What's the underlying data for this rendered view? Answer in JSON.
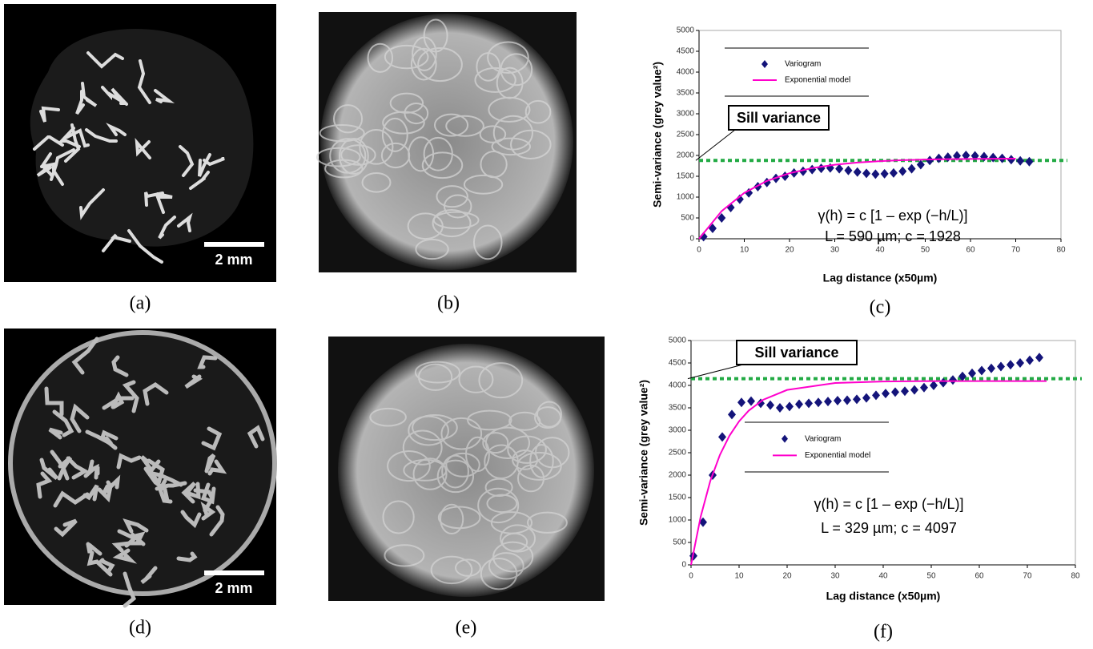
{
  "panels": [
    {
      "label": "(a)",
      "scale_bar": "2 mm"
    },
    {
      "label": "(b)"
    },
    {
      "label": "(d)",
      "scale_bar": "2 mm"
    },
    {
      "label": "(e)"
    }
  ],
  "chart_data": [
    {
      "type": "scatter",
      "panel_label": "(c)",
      "xlabel": "Lag distance (x50µm)",
      "ylabel": "Semi-variance (grey value²)",
      "xlim": [
        0,
        80
      ],
      "xticks": [
        0,
        10,
        20,
        30,
        40,
        50,
        60,
        70,
        80
      ],
      "ylim": [
        0,
        5000
      ],
      "yticks": [
        0,
        500,
        1000,
        1500,
        2000,
        2500,
        3000,
        3500,
        4000,
        4500,
        5000
      ],
      "series": [
        {
          "name": "Variogram",
          "style": "markers",
          "color": "#14147a",
          "x": [
            1,
            3,
            5,
            7,
            9,
            11,
            13,
            15,
            17,
            19,
            21,
            23,
            25,
            27,
            29,
            31,
            33,
            35,
            37,
            39,
            41,
            43,
            45,
            47,
            49,
            51,
            53,
            55,
            57,
            59,
            61,
            63,
            65,
            67,
            69,
            71,
            73
          ],
          "values": [
            50,
            250,
            500,
            750,
            950,
            1100,
            1250,
            1350,
            1450,
            1500,
            1580,
            1620,
            1660,
            1690,
            1700,
            1680,
            1640,
            1600,
            1570,
            1550,
            1560,
            1580,
            1620,
            1680,
            1780,
            1880,
            1930,
            1960,
            1990,
            2000,
            1990,
            1970,
            1950,
            1930,
            1900,
            1870,
            1850
          ]
        },
        {
          "name": "Exponential model",
          "style": "line",
          "color": "#ff00cc",
          "x": [
            0,
            5,
            10,
            15,
            20,
            25,
            30,
            35,
            40,
            45,
            50,
            55,
            60,
            65,
            70
          ],
          "values": [
            0,
            665,
            1101,
            1389,
            1573,
            1696,
            1776,
            1829,
            1863,
            1886,
            1901,
            1910,
            1917,
            1921,
            1923
          ]
        }
      ],
      "reference_line": {
        "value": 1880,
        "label": "Sill variance",
        "color": "#22aa44"
      },
      "annotations": [
        "γ(h) = c [1 – exp (−h/L)]",
        "L = 590 µm; c = 1928"
      ]
    },
    {
      "type": "scatter",
      "panel_label": "(f)",
      "xlabel": "Lag distance (x50µm)",
      "ylabel": "Semi-variance (grey value²)",
      "xlim": [
        0,
        80
      ],
      "xticks": [
        0,
        10,
        20,
        30,
        40,
        50,
        60,
        70,
        80
      ],
      "ylim": [
        0,
        5000
      ],
      "yticks": [
        0,
        500,
        1000,
        1500,
        2000,
        2500,
        3000,
        3500,
        4000,
        4500,
        5000
      ],
      "series": [
        {
          "name": "Variogram",
          "style": "markers",
          "color": "#14147a",
          "x": [
            0.5,
            2.5,
            4.5,
            6.5,
            8.5,
            10.5,
            12.5,
            14.5,
            16.5,
            18.5,
            20.5,
            22.5,
            24.5,
            26.5,
            28.5,
            30.5,
            32.5,
            34.5,
            36.5,
            38.5,
            40.5,
            42.5,
            44.5,
            46.5,
            48.5,
            50.5,
            52.5,
            54.5,
            56.5,
            58.5,
            60.5,
            62.5,
            64.5,
            66.5,
            68.5,
            70.5,
            72.5
          ],
          "values": [
            200,
            950,
            2000,
            2850,
            3350,
            3620,
            3650,
            3600,
            3560,
            3500,
            3530,
            3580,
            3600,
            3620,
            3640,
            3660,
            3670,
            3690,
            3720,
            3780,
            3820,
            3850,
            3870,
            3900,
            3950,
            4000,
            4060,
            4120,
            4200,
            4270,
            4330,
            4380,
            4420,
            4460,
            4500,
            4560,
            4620
          ]
        },
        {
          "name": "Exponential model",
          "style": "line",
          "color": "#ff00cc",
          "x": [
            0,
            2,
            4,
            6,
            8,
            10,
            12,
            15,
            20,
            30,
            40,
            50,
            60,
            70,
            74
          ],
          "values": [
            0,
            1072,
            1867,
            2449,
            2879,
            3199,
            3437,
            3679,
            3899,
            4054,
            4087,
            4096,
            4097,
            4097,
            4097
          ]
        }
      ],
      "reference_line": {
        "value": 4150,
        "label": "Sill variance",
        "color": "#22aa44"
      },
      "annotations": [
        "γ(h) = c [1 – exp (−h/L)]",
        "L = 329 µm; c = 4097"
      ]
    }
  ]
}
